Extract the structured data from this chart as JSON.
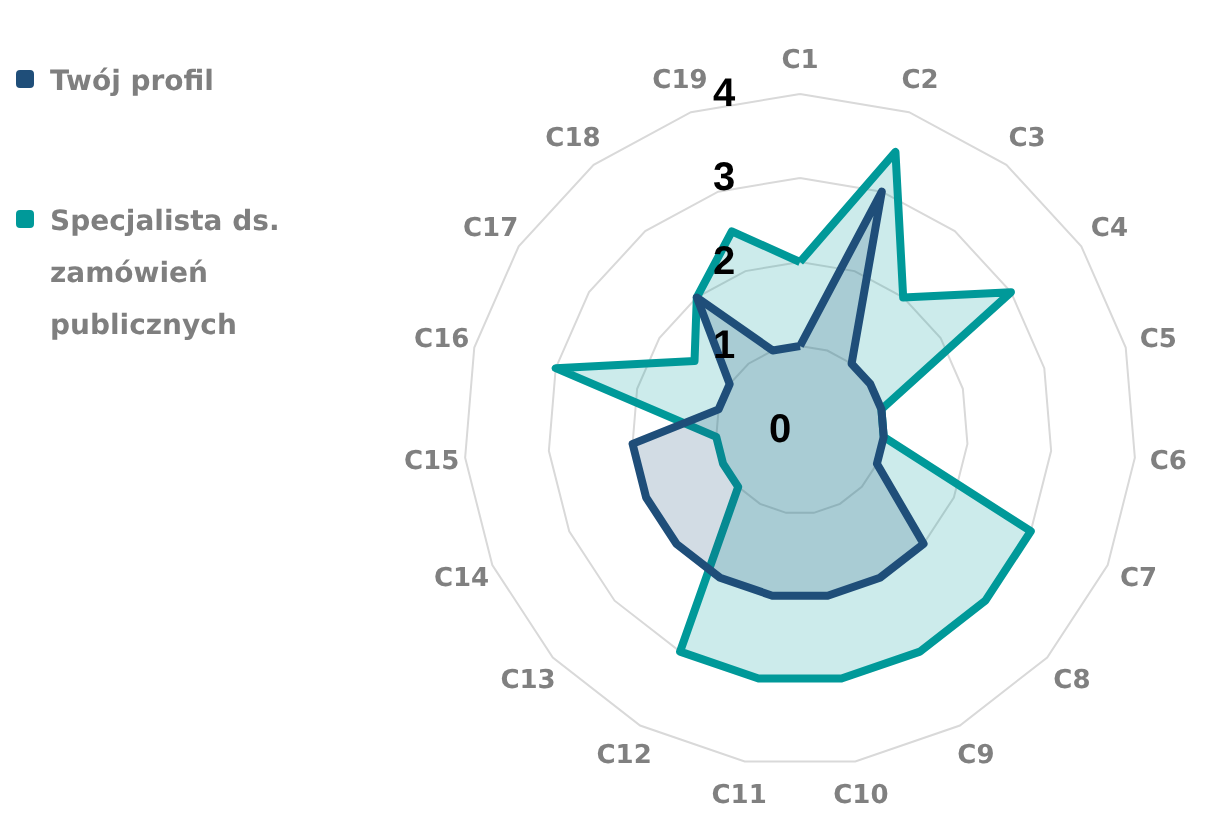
{
  "chart_data": {
    "type": "radar",
    "categories": [
      "C1",
      "C2",
      "C3",
      "C4",
      "C5",
      "C6",
      "C7",
      "C8",
      "C9",
      "C10",
      "C11",
      "C12",
      "C13",
      "C14",
      "C15",
      "C16",
      "C17",
      "C18",
      "C19"
    ],
    "series": [
      {
        "name": "Twój profil",
        "color": "#1f4e79",
        "values": [
          1,
          3,
          1,
          1,
          1,
          1,
          1,
          2,
          2,
          2,
          2,
          2,
          2,
          2,
          2,
          1,
          1,
          2,
          1
        ]
      },
      {
        "name": "Specjalista ds. zamówień publicznych",
        "color": "#009999",
        "values": [
          2,
          3.5,
          2,
          3,
          1,
          1,
          3,
          3,
          3,
          3,
          3,
          3,
          1,
          1,
          1,
          3,
          1.5,
          2,
          2.5
        ]
      }
    ],
    "ylim": [
      0,
      4
    ],
    "yticks": [
      0,
      1,
      2,
      3,
      4
    ],
    "grid": true,
    "legend": "left"
  }
}
